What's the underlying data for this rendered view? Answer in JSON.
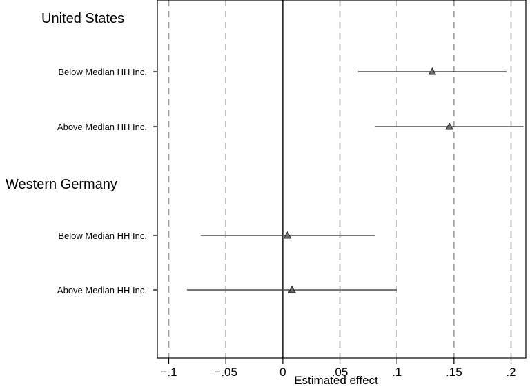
{
  "chart_data": {
    "type": "scatter",
    "subtype": "coefficient-plot",
    "orientation": "horizontal",
    "xlabel": "Estimated effect",
    "xlim": [
      -0.11,
      0.213
    ],
    "x_ticks": [
      -0.1,
      -0.05,
      0,
      0.05,
      0.1,
      0.15,
      0.2
    ],
    "x_tick_labels": [
      "−.1",
      "−.05",
      "0",
      ".05",
      ".1",
      ".15",
      ".2"
    ],
    "grid": "vertical dashed at ticks",
    "reference_line": 0,
    "marker": "triangle",
    "groups": [
      {
        "name": "United States",
        "rows": [
          {
            "label": "Below Median HH Inc.",
            "estimate": 0.131,
            "ci": [
              0.066,
              0.196
            ]
          },
          {
            "label": "Above Median HH Inc.",
            "estimate": 0.146,
            "ci": [
              0.081,
              0.211
            ]
          }
        ]
      },
      {
        "name": "Western Germany",
        "rows": [
          {
            "label": "Below Median HH Inc.",
            "estimate": 0.004,
            "ci": [
              -0.072,
              0.081
            ]
          },
          {
            "label": "Above Median HH Inc.",
            "estimate": 0.008,
            "ci": [
              -0.084,
              0.1
            ]
          }
        ]
      }
    ]
  },
  "colors": {
    "frame": "#000000",
    "grid": "#9a9a9a",
    "ci_line": "#4a4a4a",
    "marker_fill": "#6b6b6b",
    "marker_stroke": "#222222"
  }
}
